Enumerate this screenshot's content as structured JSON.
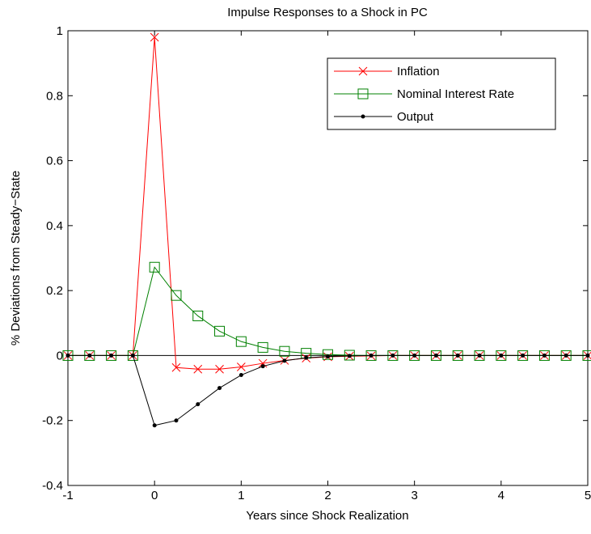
{
  "chart_data": {
    "type": "line",
    "title": "Impulse Responses to a Shock in PC",
    "xlabel": "Years since Shock Realization",
    "ylabel": "% Deviations from Steady−State",
    "x": [
      -1,
      -0.75,
      -0.5,
      -0.25,
      0,
      0.25,
      0.5,
      0.75,
      1,
      1.25,
      1.5,
      1.75,
      2,
      2.25,
      2.5,
      2.75,
      3,
      3.25,
      3.5,
      3.75,
      4,
      4.25,
      4.5,
      4.75,
      5
    ],
    "series": [
      {
        "name": "Inflation",
        "color": "#ff0000",
        "marker": "x",
        "values": [
          0,
          0,
          0,
          0,
          0.98,
          -0.037,
          -0.042,
          -0.042,
          -0.035,
          -0.024,
          -0.015,
          -0.008,
          -0.004,
          -0.002,
          -0.001,
          0,
          0,
          0,
          0,
          0,
          0,
          0,
          0,
          0,
          0
        ]
      },
      {
        "name": "Nominal Interest Rate",
        "color": "#008000",
        "marker": "square",
        "values": [
          0,
          0,
          0,
          0,
          0.272,
          0.185,
          0.122,
          0.075,
          0.043,
          0.025,
          0.013,
          0.007,
          0.003,
          0.001,
          0,
          0,
          0,
          0,
          0,
          0,
          0,
          0,
          0,
          0,
          0
        ]
      },
      {
        "name": "Output",
        "color": "#000000",
        "marker": "dot",
        "values": [
          0,
          0,
          0,
          0,
          -0.215,
          -0.2,
          -0.15,
          -0.1,
          -0.06,
          -0.033,
          -0.016,
          -0.007,
          -0.003,
          -0.001,
          0,
          0,
          0,
          0,
          0,
          0,
          0,
          0,
          0,
          0,
          0
        ]
      }
    ],
    "xlim": [
      -1,
      5
    ],
    "xticks": [
      -1,
      0,
      1,
      2,
      3,
      4,
      5
    ],
    "ylim": [
      -0.4,
      1
    ],
    "yticks": [
      -0.4,
      -0.2,
      0,
      0.2,
      0.4,
      0.6,
      0.8,
      1
    ],
    "zero_line": true,
    "legend": "upper right"
  }
}
